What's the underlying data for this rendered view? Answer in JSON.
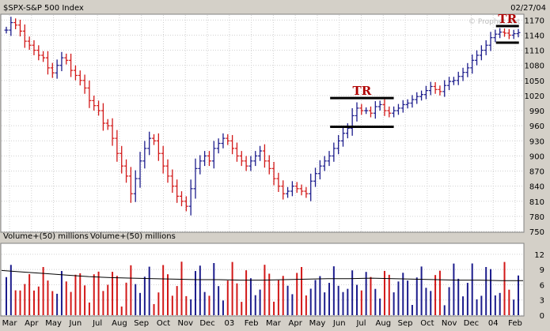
{
  "chart_data": [
    {
      "type": "ohlc",
      "title": "$SPX-S&P 500 Index",
      "date": "02/27/04",
      "watermark": "© Prophet.Net",
      "colors": {
        "up": "#1c1c8c",
        "down": "#d21818",
        "background": "#ffffff",
        "grid": "#d0d0d0",
        "annotation": "#b00000"
      },
      "grid": true,
      "ylim": [
        750,
        1180
      ],
      "y_ticks": [
        750,
        780,
        810,
        840,
        870,
        900,
        930,
        960,
        990,
        1020,
        1050,
        1080,
        1110,
        1140,
        1170
      ],
      "x_tick_labels": [
        "Mar",
        "Apr",
        "May",
        "Jun",
        "Jul",
        "Aug",
        "Sep",
        "Oct",
        "Nov",
        "Dec",
        "03",
        "Feb",
        "Mar",
        "Apr",
        "May",
        "Jun",
        "Jul",
        "Aug",
        "Sep",
        "Oct",
        "Nov",
        "Dec",
        "04",
        "Feb"
      ],
      "weekly_close": [
        1150,
        1165,
        1160,
        1148,
        1128,
        1120,
        1110,
        1100,
        1095,
        1075,
        1065,
        1080,
        1095,
        1090,
        1070,
        1060,
        1050,
        1035,
        1010,
        1000,
        990,
        965,
        960,
        935,
        905,
        880,
        860,
        825,
        855,
        890,
        915,
        935,
        930,
        905,
        880,
        860,
        840,
        820,
        810,
        800,
        835,
        875,
        890,
        900,
        890,
        915,
        925,
        935,
        930,
        915,
        900,
        890,
        880,
        890,
        900,
        910,
        890,
        875,
        855,
        840,
        825,
        830,
        840,
        835,
        830,
        825,
        850,
        865,
        880,
        890,
        900,
        915,
        930,
        945,
        955,
        980,
        995,
        990,
        990,
        985,
        998,
        1002,
        990,
        985,
        990,
        995,
        1002,
        1005,
        1012,
        1018,
        1022,
        1030,
        1038,
        1032,
        1028,
        1040,
        1048,
        1050,
        1058,
        1066,
        1075,
        1090,
        1100,
        1110,
        1120,
        1135,
        1142,
        1146,
        1144,
        1140,
        1143,
        1145
      ],
      "annotations": [
        {
          "text": "TR",
          "range": [
            958,
            1015
          ]
        },
        {
          "text": "TR",
          "range": [
            1125,
            1158
          ]
        }
      ]
    },
    {
      "type": "bar",
      "title": "Volume+(50) millions",
      "title_repeat": "Volume+(50) millions",
      "ylim": [
        0,
        14
      ],
      "y_ticks": [
        0,
        3,
        6,
        9,
        12
      ],
      "moving_average": [
        8.8,
        8.5,
        8.2,
        7.9,
        7.6,
        7.4,
        7.3,
        7.2,
        7.1,
        7.0,
        7.0,
        6.9,
        6.9,
        7.0,
        7.1,
        7.2,
        7.2,
        7.3,
        7.2,
        7.1,
        7.0,
        6.9,
        6.9,
        6.8,
        6.8
      ],
      "moving_average_color": "#000000"
    }
  ]
}
